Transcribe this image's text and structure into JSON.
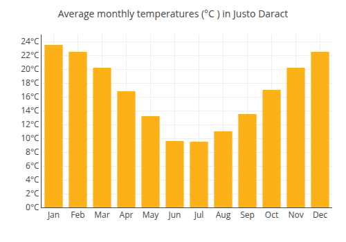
{
  "chart_data": {
    "type": "bar",
    "title": "Average monthly temperatures (°C ) in Justo Daract",
    "categories": [
      "Jan",
      "Feb",
      "Mar",
      "Apr",
      "May",
      "Jun",
      "Jul",
      "Aug",
      "Sep",
      "Oct",
      "Nov",
      "Dec"
    ],
    "values": [
      23.5,
      22.5,
      20.2,
      16.8,
      13.2,
      9.6,
      9.5,
      11.0,
      13.5,
      17.0,
      20.2,
      22.5
    ],
    "color": "#FBB117",
    "ylim": [
      0,
      25
    ],
    "yticks": [
      {
        "value": 0,
        "label": "0°C"
      },
      {
        "value": 2,
        "label": "2°C"
      },
      {
        "value": 4,
        "label": "4°C"
      },
      {
        "value": 6,
        "label": "6°C"
      },
      {
        "value": 8,
        "label": "8°C"
      },
      {
        "value": 10,
        "label": "10°C"
      },
      {
        "value": 12,
        "label": "12°C"
      },
      {
        "value": 14,
        "label": "14°C"
      },
      {
        "value": 16,
        "label": "16°C"
      },
      {
        "value": 18,
        "label": "18°C"
      },
      {
        "value": 20,
        "label": "20°C"
      },
      {
        "value": 22,
        "label": "22°C"
      },
      {
        "value": 24,
        "label": "24°C"
      }
    ],
    "grid": true
  }
}
